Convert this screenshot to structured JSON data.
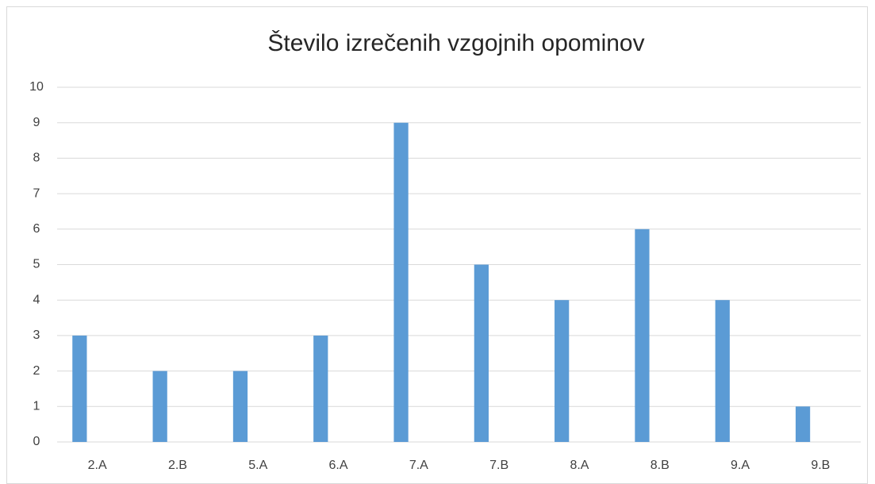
{
  "chart_data": {
    "type": "bar",
    "title": "Število izrečenih vzgojnih opominov",
    "categories": [
      "2.A",
      "2.B",
      "5.A",
      "6.A",
      "7.A",
      "7.B",
      "8.A",
      "8.B",
      "9.A",
      "9.B"
    ],
    "values": [
      3,
      2,
      2,
      3,
      9,
      5,
      4,
      6,
      4,
      1
    ],
    "color": "#5b9bd5",
    "ylim": [
      0,
      10
    ],
    "yticks": [
      0,
      1,
      2,
      3,
      4,
      5,
      6,
      7,
      8,
      9,
      10
    ],
    "grid": true
  }
}
